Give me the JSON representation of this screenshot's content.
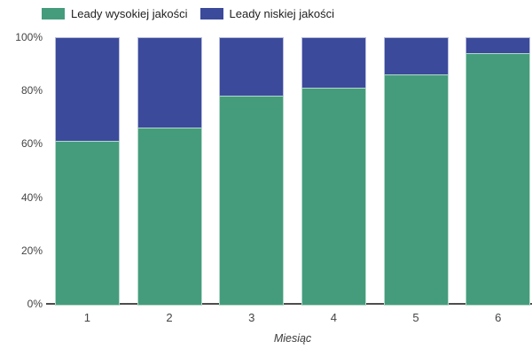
{
  "chart_data": {
    "type": "bar",
    "stacked": true,
    "unit": "%",
    "categories": [
      "1",
      "2",
      "3",
      "4",
      "5",
      "6"
    ],
    "series": [
      {
        "name": "Leady wysokiej jakości",
        "color": "#459c7d",
        "border_color": "#b5d9c8",
        "values": [
          61,
          66,
          78,
          81,
          86,
          94
        ]
      },
      {
        "name": "Leady niskiej jakości",
        "color": "#3b4a9b",
        "border_color": "#b7bddd",
        "values": [
          39,
          34,
          22,
          19,
          14,
          6
        ]
      }
    ],
    "title": "",
    "xlabel": "Miesiąc",
    "ylabel": "",
    "ylim": [
      0,
      100
    ],
    "yticks": [
      {
        "label": "0%",
        "value": 0
      },
      {
        "label": "20%",
        "value": 20
      },
      {
        "label": "40%",
        "value": 40
      },
      {
        "label": "60%",
        "value": 60
      },
      {
        "label": "80%",
        "value": 80
      },
      {
        "label": "100%",
        "value": 100
      }
    ],
    "legend_position": "top",
    "grid": false,
    "axis_color": "#4d4d4d",
    "tick_text_color": "#444444",
    "legend_text_color": "#212121",
    "background_color": "#ffffff"
  }
}
